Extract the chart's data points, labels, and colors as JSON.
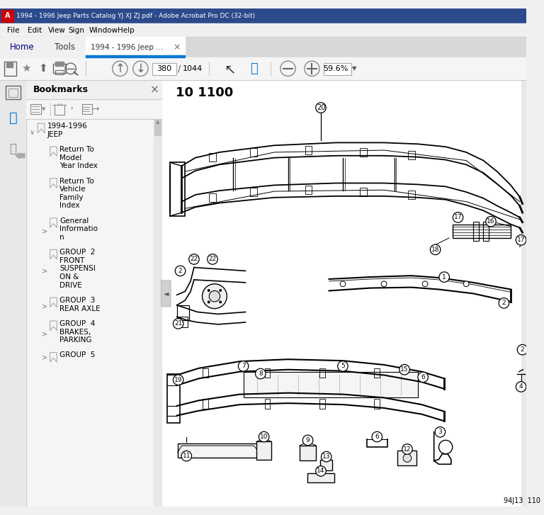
{
  "title_bar": "1994 - 1996 Jeep Parts Catalog YJ XJ ZJ.pdf - Adobe Acrobat Pro DC (32-bit)",
  "menu_items": [
    "File",
    "Edit",
    "View",
    "Sign",
    "Window",
    "Help"
  ],
  "page_num": "380",
  "total_pages": "1044",
  "zoom_pct": "59.6%",
  "bookmarks_title": "Bookmarks",
  "page_header": "10 1100",
  "diagram_label": "94J13  110",
  "bg_color": "#f0f0f0",
  "titlebar_color": "#2b4a8b",
  "titlebar_text_color": "#ffffff",
  "content_bg": "#ffffff",
  "sidebar_bg": "#f0f0f0",
  "bookmark_entries": [
    {
      "text": "1994-1996\nJEEP",
      "indent": 0,
      "has_arrow": true,
      "expanded": true
    },
    {
      "text": "Return To\nModel\nYear Index",
      "indent": 1,
      "has_arrow": false,
      "expanded": false
    },
    {
      "text": "Return To\nVehicle\nFamily\nIndex",
      "indent": 1,
      "has_arrow": false,
      "expanded": false
    },
    {
      "text": "General\nInformatio\nn",
      "indent": 1,
      "has_arrow": true,
      "expanded": false
    },
    {
      "text": "GROUP  2\nFRONT\nSUSPENSI\nON &\nDRIVE",
      "indent": 1,
      "has_arrow": true,
      "expanded": false
    },
    {
      "text": "GROUP  3\nREAR AXLE",
      "indent": 1,
      "has_arrow": true,
      "expanded": false
    },
    {
      "text": "GROUP  4\nBRAKES,\nPARKING",
      "indent": 1,
      "has_arrow": true,
      "expanded": false
    },
    {
      "text": "GROUP  5",
      "indent": 1,
      "has_arrow": true,
      "expanded": false
    }
  ]
}
